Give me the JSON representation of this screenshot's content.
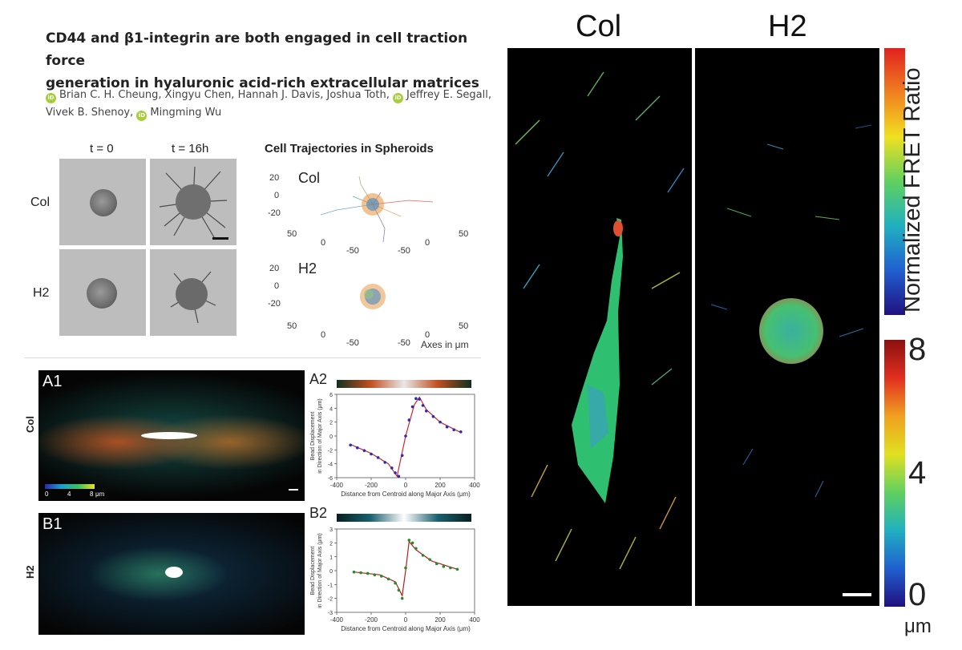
{
  "paper": {
    "title_line1": "CD44 and β1-integrin are both engaged in cell traction force",
    "title_line2": "generation in hyaluronic acid-rich extracellular matrices",
    "authors_line1": {
      "a1": "Brian C. H. Cheung, Xingyu Chen, Hannah J. Davis, Joshua Toth,",
      "a2": "Jeffrey E. Segall,"
    },
    "authors_line2": {
      "a3": "Vivek B. Shenoy,",
      "a4": "Mingming Wu"
    },
    "orcid_badge": "iD"
  },
  "spheroid_grid": {
    "col_headers": [
      "t = 0",
      "t = 16h"
    ],
    "row_labels": [
      "Col",
      "H2"
    ]
  },
  "trajectories": {
    "title": "Cell Trajectories in Spheroids",
    "panels": [
      {
        "label": "Col",
        "z_ticks": [
          "20",
          "0",
          "-20"
        ],
        "x_ticks": [
          "50",
          "0",
          "-50"
        ],
        "y_ticks": [
          "50",
          "0",
          "-50"
        ]
      },
      {
        "label": "H2",
        "z_ticks": [
          "20",
          "0",
          "-20"
        ],
        "x_ticks": [
          "50",
          "0",
          "-50"
        ],
        "y_ticks": [
          "50",
          "0",
          "-50"
        ]
      }
    ],
    "axes_note": "Axes in μm"
  },
  "displacement_maps": {
    "a1_label": "A1",
    "b1_label": "B1",
    "row_col": "Col",
    "row_h2": "H2",
    "colorbar_ticks": [
      "0",
      "4",
      "8"
    ],
    "colorbar_unit": "μm"
  },
  "chart_data": [
    {
      "type": "scatter",
      "panel_label": "A2",
      "xlabel": "Distance from Centroid along Major Axis (μm)",
      "ylabel_line1": "Bead Displacement",
      "ylabel_line2": "in Direction of Major Axis (μm)",
      "xlim": [
        -400,
        400
      ],
      "ylim": [
        -6,
        6
      ],
      "x_ticks": [
        -400,
        -200,
        0,
        200,
        400
      ],
      "y_ticks": [
        -6,
        -4,
        -2,
        0,
        2,
        4,
        6
      ],
      "point_color": "#2b2bb8",
      "fit_color": "#d02828",
      "x": [
        -320,
        -280,
        -240,
        -200,
        -160,
        -120,
        -80,
        -60,
        -40,
        -20,
        0,
        20,
        40,
        60,
        80,
        100,
        120,
        160,
        200,
        240,
        280,
        320
      ],
      "y": [
        -1.3,
        -1.7,
        -2.1,
        -2.6,
        -3.1,
        -3.8,
        -4.6,
        -5.3,
        -5.8,
        -2.8,
        0.0,
        2.3,
        4.2,
        5.4,
        5.3,
        4.4,
        3.6,
        2.8,
        2.0,
        1.3,
        0.9,
        0.6
      ],
      "fit_x": [
        -320,
        -200,
        -100,
        -50,
        0,
        50,
        80,
        120,
        200,
        320
      ],
      "fit_y": [
        -1.2,
        -2.5,
        -4.0,
        -5.8,
        0.0,
        4.5,
        5.6,
        3.8,
        2.0,
        0.5
      ]
    },
    {
      "type": "scatter",
      "panel_label": "B2",
      "xlabel": "Distance from Centroid along Major Axis (μm)",
      "ylabel_line1": "Bead Displacement",
      "ylabel_line2": "in Direction of Major Axis (μm)",
      "xlim": [
        -400,
        400
      ],
      "ylim": [
        -3,
        3
      ],
      "x_ticks": [
        -400,
        -200,
        0,
        200,
        400
      ],
      "y_ticks": [
        -3,
        -2,
        -1,
        0,
        1,
        2,
        3
      ],
      "point_color": "#2a8a2a",
      "fit_color": "#b02020",
      "x": [
        -300,
        -260,
        -220,
        -180,
        -140,
        -100,
        -60,
        -40,
        -20,
        0,
        20,
        40,
        60,
        100,
        140,
        180,
        220,
        260,
        300
      ],
      "y": [
        -0.1,
        -0.15,
        -0.2,
        -0.3,
        -0.4,
        -0.6,
        -0.9,
        -1.4,
        -2.0,
        0.2,
        2.2,
        2.0,
        1.6,
        1.1,
        0.8,
        0.5,
        0.3,
        0.2,
        0.1
      ],
      "fit_x": [
        -300,
        -150,
        -60,
        -20,
        0,
        20,
        60,
        150,
        300
      ],
      "fit_y": [
        -0.1,
        -0.3,
        -0.8,
        -1.8,
        0.0,
        2.1,
        1.5,
        0.7,
        0.1
      ]
    }
  ],
  "fret_figure": {
    "header_col": "Col",
    "header_h2": "H2",
    "colorbar_top_label": "Normalized FRET Ratio",
    "colorbar_bottom_ticks": [
      "8",
      "4",
      "0"
    ],
    "colorbar_unit": "μm"
  }
}
